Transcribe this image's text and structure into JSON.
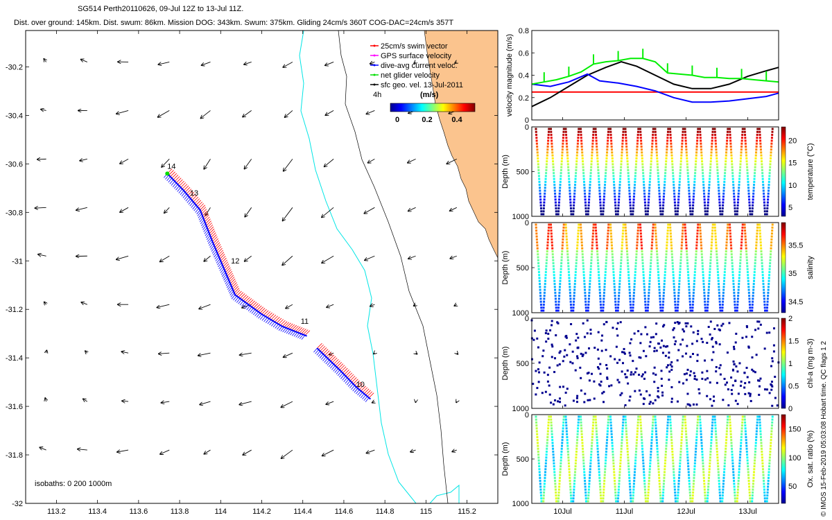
{
  "header": {
    "line1": "SG514 Perth20110626, 09-Jul 12Z to 13-Jul 11Z.",
    "line2": "Dist. over ground: 145km. Dist. swum: 86km. Mission DOG: 343km. Swum: 375km. Gliding 24cm/s 360T COG-DAC=24cm/s 357T"
  },
  "side_note": "© IMOS 15-Feb-2019 05:03:08 Hobart time. QC flags 1  2",
  "map": {
    "xlim": [
      113.05,
      115.35
    ],
    "ylim": [
      -32.0,
      -30.05
    ],
    "xticks": [
      "113.2",
      "113.4",
      "113.6",
      "113.8",
      "114",
      "114.2",
      "114.4",
      "114.6",
      "114.8",
      "115",
      "115.2"
    ],
    "xtick_values": [
      113.2,
      113.4,
      113.6,
      113.8,
      114.0,
      114.2,
      114.4,
      114.6,
      114.8,
      115.0,
      115.2
    ],
    "yticks": [
      "-30.2",
      "-30.4",
      "-30.6",
      "-30.8",
      "-31",
      "-31.2",
      "-31.4",
      "-31.6",
      "-31.8",
      "-32"
    ],
    "ytick_values": [
      -30.2,
      -30.4,
      -30.6,
      -30.8,
      -31.0,
      -31.2,
      -31.4,
      -31.6,
      -31.8,
      -32.0
    ],
    "legend": [
      {
        "label": "25cm/s swim vector",
        "color": "#ff0000"
      },
      {
        "label": "GPS surface velocity",
        "color": "#ff00ff"
      },
      {
        "label": "dive-avg current veloc.",
        "color": "#0000ff"
      },
      {
        "label": "net glider velocity",
        "color": "#00dd00"
      },
      {
        "label": "sfc geo. vel. 13-Jul-2011",
        "color": "#000000"
      }
    ],
    "scale_note": "4h",
    "colorbar_title": "(m/s)",
    "colorbar_ticks": [
      "0",
      "0.2",
      "0.4"
    ],
    "isobaths_label": "isobaths: 0   200  1000m",
    "day_labels": [
      {
        "label": "14",
        "lon": 113.74,
        "lat": -30.62
      },
      {
        "label": "13",
        "lon": 113.85,
        "lat": -30.73
      },
      {
        "label": "12",
        "lon": 114.05,
        "lat": -31.01
      },
      {
        "label": "11",
        "lon": 114.39,
        "lat": -31.26
      },
      {
        "label": "10",
        "lon": 114.66,
        "lat": -31.52
      }
    ],
    "track": [
      [
        113.74,
        -30.64
      ],
      [
        113.82,
        -30.71
      ],
      [
        113.9,
        -30.79
      ],
      [
        113.96,
        -30.92
      ],
      [
        114.02,
        -31.04
      ],
      [
        114.07,
        -31.14
      ],
      [
        114.2,
        -31.22
      ],
      [
        114.3,
        -31.27
      ],
      [
        114.42,
        -31.31
      ]
    ],
    "track2": [
      [
        114.47,
        -31.36
      ],
      [
        114.58,
        -31.45
      ],
      [
        114.66,
        -31.52
      ],
      [
        114.73,
        -31.57
      ]
    ],
    "land_color": "#fbc48e",
    "isobath_color": "#00e5e5",
    "coast_lon_note": "coastline"
  },
  "chart_data": [
    {
      "type": "line",
      "ylabel": "velocity magnitude (m/s)",
      "ylim": [
        0,
        0.8
      ],
      "yticks": [
        "0",
        "0.2",
        "0.4",
        "0.6",
        "0.8"
      ],
      "xlim": [
        9.5,
        13.5
      ],
      "series": [
        {
          "color": "#ff0000",
          "x": [
            9.5,
            13.5
          ],
          "values": [
            0.25,
            0.25
          ]
        },
        {
          "color": "#000000",
          "x": [
            9.5,
            9.8,
            10.1,
            10.4,
            10.7,
            10.95,
            11.2,
            11.5,
            11.8,
            12.1,
            12.4,
            12.7,
            13.0,
            13.3,
            13.5
          ],
          "values": [
            0.12,
            0.2,
            0.3,
            0.4,
            0.47,
            0.52,
            0.48,
            0.4,
            0.32,
            0.28,
            0.28,
            0.32,
            0.39,
            0.44,
            0.47
          ]
        },
        {
          "color": "#0000ff",
          "x": [
            9.5,
            9.8,
            10.1,
            10.4,
            10.6,
            10.9,
            11.2,
            11.5,
            11.8,
            12.1,
            12.4,
            12.7,
            13.0,
            13.3,
            13.5
          ],
          "values": [
            0.32,
            0.3,
            0.34,
            0.41,
            0.35,
            0.33,
            0.3,
            0.26,
            0.2,
            0.16,
            0.16,
            0.17,
            0.19,
            0.21,
            0.24
          ]
        },
        {
          "color": "#00ee00",
          "x": [
            9.5,
            9.7,
            9.9,
            10.1,
            10.3,
            10.5,
            10.7,
            10.9,
            11.1,
            11.3,
            11.5,
            11.7,
            11.9,
            12.1,
            12.3,
            12.5,
            12.7,
            12.9,
            13.1,
            13.3,
            13.5
          ],
          "values": [
            0.32,
            0.34,
            0.36,
            0.39,
            0.43,
            0.5,
            0.52,
            0.53,
            0.55,
            0.55,
            0.52,
            0.42,
            0.41,
            0.4,
            0.38,
            0.38,
            0.37,
            0.37,
            0.36,
            0.35,
            0.34
          ]
        }
      ]
    },
    {
      "type": "scatter",
      "ylabel": "Depth (m)",
      "ylim": [
        1000,
        0
      ],
      "yticks": [
        "0",
        "500",
        "1000"
      ],
      "colorbar_label": "temperature (°C)",
      "colorbar_ticks": [
        "5",
        "10",
        "15",
        "20"
      ],
      "clim": [
        3,
        23
      ]
    },
    {
      "type": "scatter",
      "ylabel": "Depth (m)",
      "ylim": [
        1000,
        0
      ],
      "yticks": [
        "0",
        "500",
        "1000"
      ],
      "colorbar_label": "salinity",
      "colorbar_ticks": [
        "34.5",
        "35",
        "35.5"
      ],
      "clim": [
        34.3,
        35.9
      ]
    },
    {
      "type": "scatter",
      "ylabel": "Depth (m)",
      "ylim": [
        1000,
        0
      ],
      "yticks": [
        "0",
        "500",
        "1000"
      ],
      "colorbar_label": "chl-a (mg m-3)",
      "colorbar_ticks": [
        "0",
        "0.5",
        "1",
        "1.5",
        "2"
      ],
      "clim": [
        0,
        2
      ]
    },
    {
      "type": "scatter",
      "ylabel": "Depth (m)",
      "ylim": [
        1000,
        0
      ],
      "yticks": [
        "0",
        "500",
        "1000"
      ],
      "xticks": [
        "10Jul",
        "11Jul",
        "12Jul",
        "13Jul"
      ],
      "xtick_values": [
        10,
        11,
        12,
        13
      ],
      "xlim": [
        9.5,
        13.5
      ],
      "colorbar_label": "Ox. sat. ratio (%)",
      "colorbar_ticks": [
        "50",
        "100",
        "150"
      ],
      "clim": [
        20,
        175
      ]
    }
  ]
}
